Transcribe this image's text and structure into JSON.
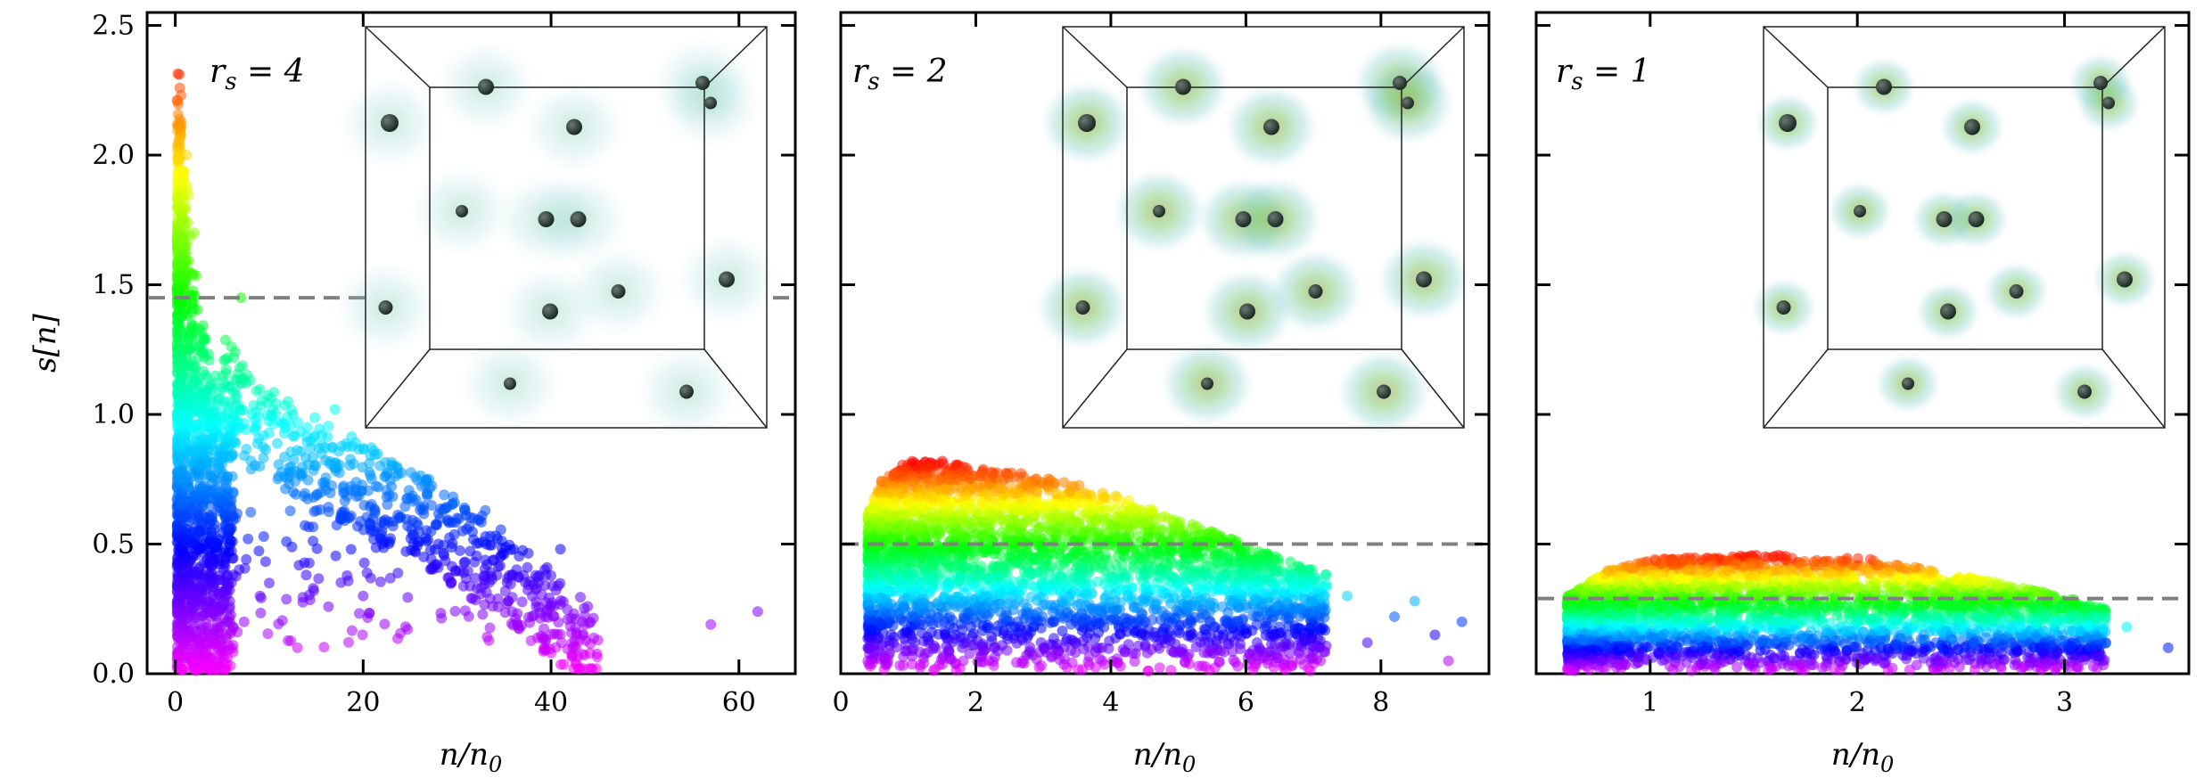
{
  "figure": {
    "ylabel": "s[n]",
    "xlabel": "n/n₀",
    "colors": {
      "axis": "#000000",
      "dashed": "#808080",
      "atom": "#2a3a32",
      "cloud_inner": "#7fae3a",
      "cloud_outer": "#6cc6c0"
    }
  },
  "chart_data": [
    {
      "type": "scatter",
      "title": "r_s = 4",
      "label": "r_s = 4",
      "xlabel": "n/n₀",
      "ylabel": "s[n]",
      "xlim": [
        -3,
        66
      ],
      "ylim": [
        0,
        2.55
      ],
      "xticks": [
        0,
        20,
        40,
        60
      ],
      "xtick_labels": [
        "0",
        "20",
        "40",
        "60"
      ],
      "yticks": [
        0.0,
        0.5,
        1.0,
        1.5,
        2.0,
        2.5
      ],
      "ytick_labels": [
        "0.0",
        "0.5",
        "1.0",
        "1.5",
        "2.0",
        "2.5"
      ],
      "dashed_line_y": 1.45,
      "colormap": "rainbow (color encodes s[n])",
      "trend_points": [
        [
          0.7,
          2.4
        ],
        [
          1.0,
          2.2
        ],
        [
          1.5,
          1.8
        ],
        [
          2.5,
          1.5
        ],
        [
          4,
          1.25
        ],
        [
          8,
          1.0
        ],
        [
          15,
          0.85
        ],
        [
          25,
          0.65
        ],
        [
          35,
          0.42
        ],
        [
          45,
          0.1
        ]
      ],
      "scatter_points": [
        [
          0.5,
          0.05
        ],
        [
          0.8,
          0.5
        ],
        [
          1.0,
          1.0
        ],
        [
          1.2,
          2.0
        ],
        [
          2,
          1.7
        ],
        [
          3,
          1.3
        ],
        [
          5,
          1.1
        ],
        [
          7,
          1.45
        ],
        [
          9,
          0.8
        ],
        [
          12,
          1.05
        ],
        [
          17,
          1.02
        ],
        [
          18,
          0.7
        ],
        [
          22,
          0.55
        ],
        [
          27,
          0.75
        ],
        [
          30,
          0.6
        ],
        [
          33,
          0.63
        ],
        [
          36,
          0.48
        ],
        [
          41,
          0.48
        ],
        [
          45,
          0.13
        ],
        [
          10,
          0.35
        ],
        [
          13,
          0.1
        ],
        [
          57,
          0.19
        ],
        [
          62,
          0.24
        ],
        [
          20,
          0.3
        ],
        [
          28,
          0.5
        ],
        [
          38,
          0.3
        ]
      ]
    },
    {
      "type": "scatter",
      "title": "r_s = 2",
      "label": "r_s = 2",
      "xlabel": "n/n₀",
      "ylabel": "",
      "xlim": [
        0,
        9.6
      ],
      "ylim": [
        0,
        2.55
      ],
      "xticks": [
        0,
        2,
        4,
        6,
        8
      ],
      "xtick_labels": [
        "0",
        "2",
        "4",
        "6",
        "8"
      ],
      "yticks": [
        0.0,
        0.5,
        1.0,
        1.5,
        2.0,
        2.5
      ],
      "ytick_labels": [],
      "dashed_line_y": 0.5,
      "colormap": "rainbow (color encodes s[n])",
      "upper_envelope": [
        [
          0.4,
          0.62
        ],
        [
          0.6,
          0.75
        ],
        [
          1.0,
          0.82
        ],
        [
          1.5,
          0.82
        ],
        [
          2.0,
          0.8
        ],
        [
          3.0,
          0.76
        ],
        [
          4.0,
          0.7
        ],
        [
          5.0,
          0.6
        ],
        [
          6.0,
          0.5
        ],
        [
          7.0,
          0.4
        ],
        [
          8.0,
          0.32
        ],
        [
          9.0,
          0.25
        ]
      ],
      "scatter_points": [
        [
          7.5,
          0.3
        ],
        [
          8.2,
          0.22
        ],
        [
          8.5,
          0.28
        ],
        [
          8.8,
          0.15
        ],
        [
          9.2,
          0.2
        ],
        [
          6.2,
          0.1
        ],
        [
          5.5,
          0.08
        ],
        [
          6.8,
          0.25
        ],
        [
          7.8,
          0.12
        ],
        [
          9.0,
          0.05
        ],
        [
          5.0,
          0.35
        ],
        [
          4.5,
          0.5
        ]
      ]
    },
    {
      "type": "scatter",
      "title": "r_s = 1",
      "label": "r_s = 1",
      "xlabel": "n/n₀",
      "ylabel": "",
      "xlim": [
        0.45,
        3.6
      ],
      "ylim": [
        0,
        2.55
      ],
      "xticks": [
        1,
        2,
        3
      ],
      "xtick_labels": [
        "1",
        "2",
        "3"
      ],
      "yticks": [
        0.0,
        0.5,
        1.0,
        1.5,
        2.0,
        2.5
      ],
      "ytick_labels": [],
      "dashed_line_y": 0.29,
      "colormap": "rainbow (color encodes s[n])",
      "upper_envelope": [
        [
          0.6,
          0.3
        ],
        [
          0.8,
          0.4
        ],
        [
          1.0,
          0.44
        ],
        [
          1.5,
          0.46
        ],
        [
          2.0,
          0.45
        ],
        [
          2.5,
          0.38
        ],
        [
          3.0,
          0.3
        ],
        [
          3.4,
          0.2
        ]
      ],
      "scatter_points": [
        [
          3.1,
          0.25
        ],
        [
          3.3,
          0.18
        ],
        [
          3.5,
          0.1
        ],
        [
          2.8,
          0.33
        ],
        [
          2.9,
          0.08
        ],
        [
          3.2,
          0.12
        ],
        [
          2.6,
          0.05
        ]
      ]
    }
  ]
}
